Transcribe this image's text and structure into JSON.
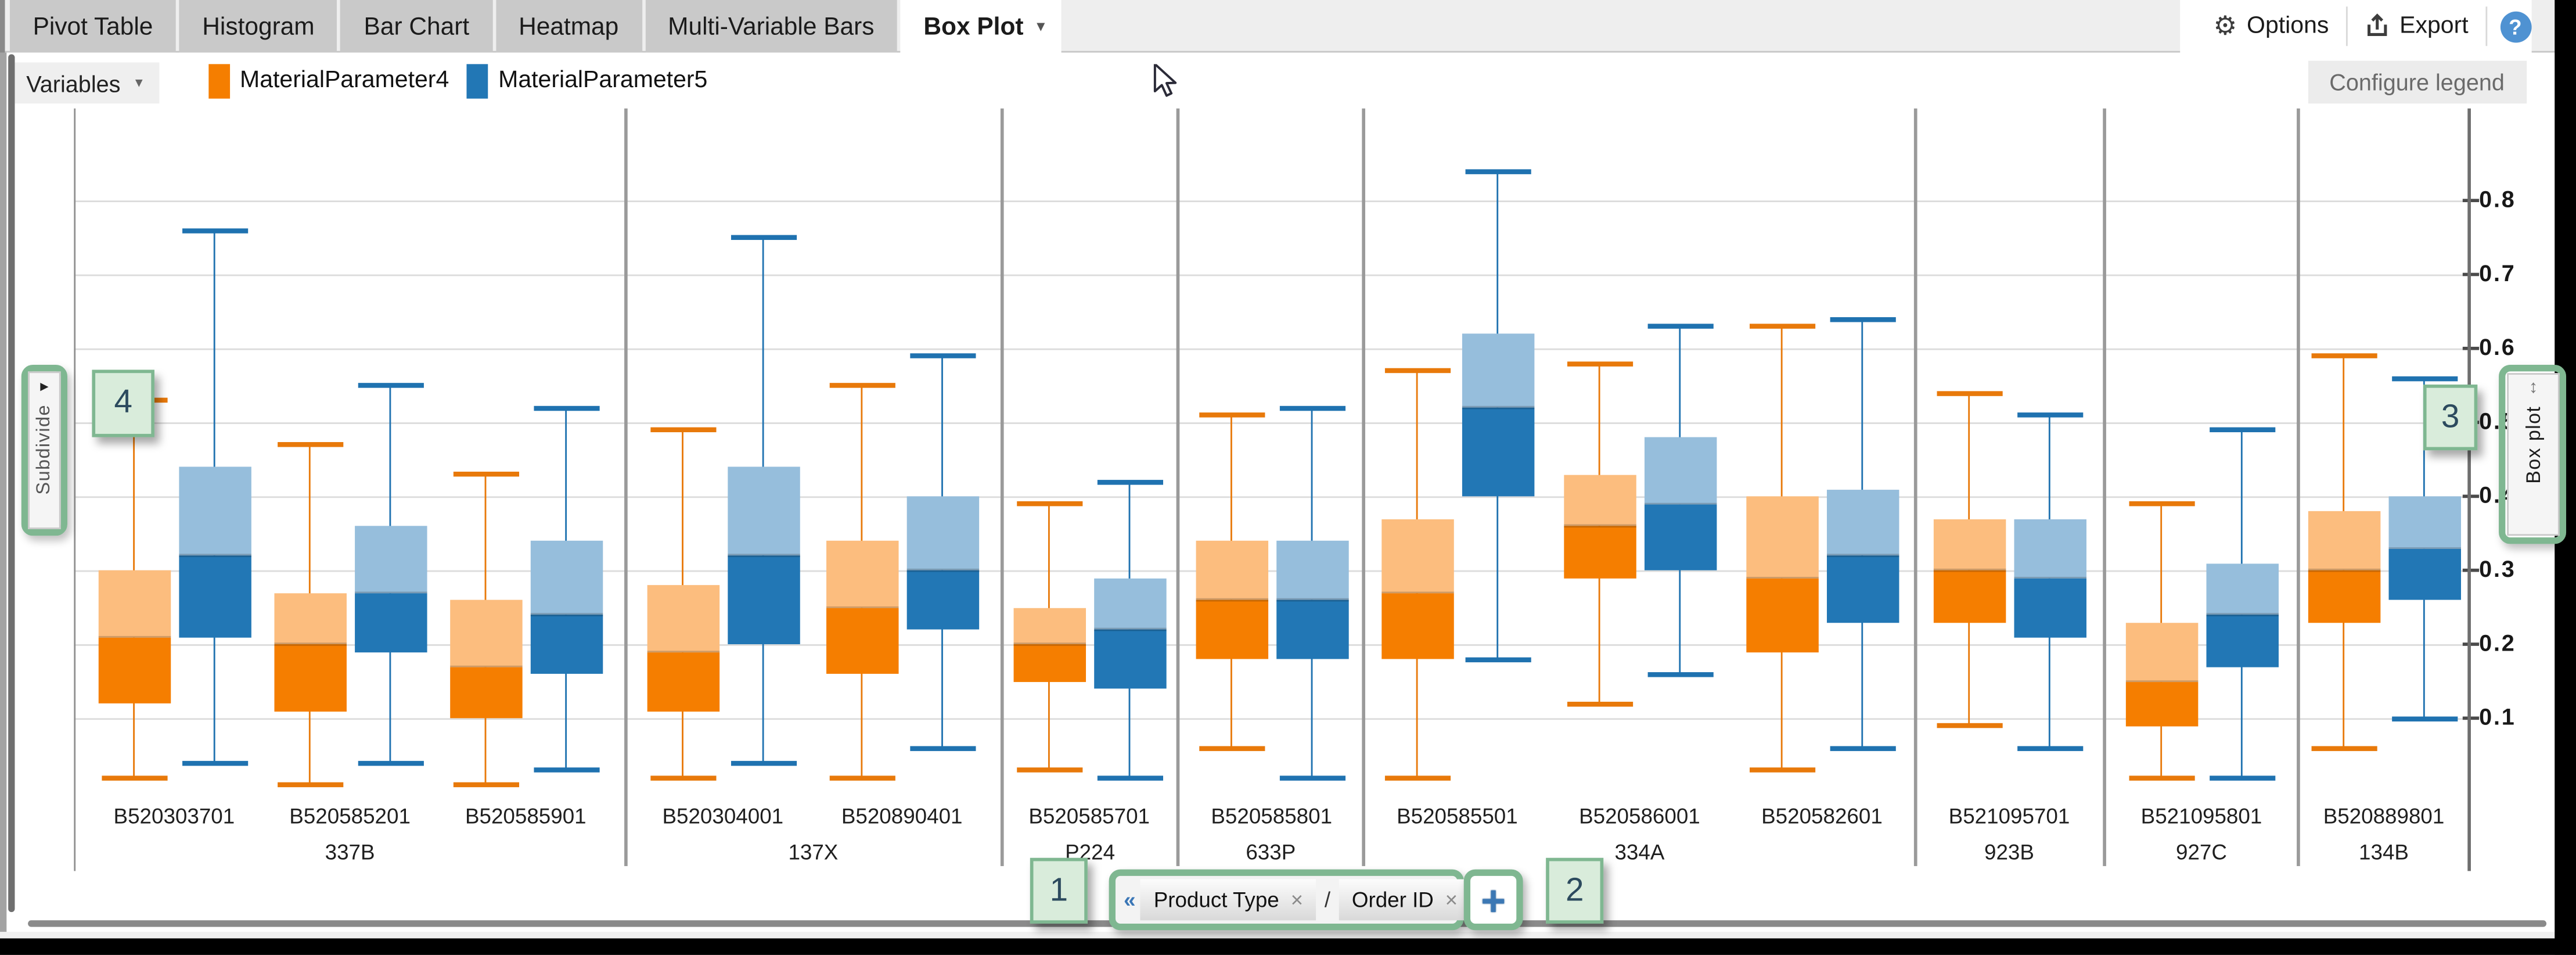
{
  "tabs": [
    {
      "label": "Pivot Table",
      "active": false
    },
    {
      "label": "Histogram",
      "active": false
    },
    {
      "label": "Bar Chart",
      "active": false
    },
    {
      "label": "Heatmap",
      "active": false
    },
    {
      "label": "Multi-Variable Bars",
      "active": false
    },
    {
      "label": "Box Plot",
      "active": true
    }
  ],
  "active_tab_caret": "▾",
  "toolbar": {
    "options_label": "Options",
    "export_label": "Export",
    "help_label": "?",
    "gear_glyph": "⚙"
  },
  "legend_bar": {
    "variables_label": "Variables",
    "caret": "▾",
    "configure_legend_label": "Configure legend"
  },
  "side_tabs": {
    "left_label": "Subdivide",
    "left_arrow": "▸",
    "right_label": "Box plot",
    "right_arrows": "↕"
  },
  "annotations": {
    "badge_1": "1",
    "badge_2": "2",
    "badge_3": "3",
    "badge_4": "4",
    "highlight_fill": "#d9ecdb",
    "highlight_border": "#7fb791"
  },
  "breadcrumb": {
    "collapse_glyph": "«",
    "chips": [
      {
        "label": "Product Type",
        "close": "×"
      },
      {
        "label": "Order ID",
        "close": "×"
      }
    ],
    "separator": "/",
    "add_label": "+"
  },
  "chart_data": {
    "type": "boxplot",
    "series_names": [
      "MaterialParameter4",
      "MaterialParameter5"
    ],
    "colors": {
      "MaterialParameter4": {
        "box_dark": "#f57e00",
        "box_light": "#fcbd7e",
        "whisker": "#e8790a"
      },
      "MaterialParameter5": {
        "box_dark": "#2277b5",
        "box_light": "#96bedc",
        "whisker": "#1f72b0"
      }
    },
    "y_axis": {
      "ticks": [
        0.1,
        0.2,
        0.3,
        0.4,
        0.5,
        0.6,
        0.7,
        0.8
      ],
      "range_shown": [
        0.0,
        0.88
      ],
      "side": "right",
      "grid": true
    },
    "x_axis": {
      "level_1": "Order ID",
      "level_2": "Product Type"
    },
    "values_order": [
      "whisker_low",
      "q1",
      "median",
      "q3",
      "whisker_high"
    ],
    "groups": [
      {
        "product_type": "337B",
        "orders": [
          {
            "id": "B520303701",
            "MaterialParameter4": [
              0.02,
              0.12,
              0.21,
              0.3,
              0.53
            ],
            "MaterialParameter5": [
              0.04,
              0.21,
              0.32,
              0.44,
              0.76
            ]
          },
          {
            "id": "B520585201",
            "MaterialParameter4": [
              0.01,
              0.11,
              0.2,
              0.27,
              0.47
            ],
            "MaterialParameter5": [
              0.04,
              0.19,
              0.27,
              0.36,
              0.55
            ]
          },
          {
            "id": "B520585901",
            "MaterialParameter4": [
              0.01,
              0.1,
              0.17,
              0.26,
              0.43
            ],
            "MaterialParameter5": [
              0.03,
              0.16,
              0.24,
              0.34,
              0.52
            ]
          }
        ]
      },
      {
        "product_type": "137X",
        "orders": [
          {
            "id": "B520304001",
            "MaterialParameter4": [
              0.02,
              0.11,
              0.19,
              0.28,
              0.49
            ],
            "MaterialParameter5": [
              0.04,
              0.2,
              0.32,
              0.44,
              0.75
            ]
          },
          {
            "id": "B520890401",
            "MaterialParameter4": [
              0.02,
              0.16,
              0.25,
              0.34,
              0.55
            ],
            "MaterialParameter5": [
              0.06,
              0.22,
              0.3,
              0.4,
              0.59
            ]
          }
        ]
      },
      {
        "product_type": "P224",
        "orders": [
          {
            "id": "B520585701",
            "MaterialParameter4": [
              0.03,
              0.15,
              0.2,
              0.25,
              0.39
            ],
            "MaterialParameter5": [
              0.02,
              0.14,
              0.22,
              0.29,
              0.42
            ]
          }
        ]
      },
      {
        "product_type": "633P",
        "orders": [
          {
            "id": "B520585801",
            "MaterialParameter4": [
              0.06,
              0.18,
              0.26,
              0.34,
              0.51
            ],
            "MaterialParameter5": [
              0.02,
              0.18,
              0.26,
              0.34,
              0.52
            ]
          }
        ]
      },
      {
        "product_type": "334A",
        "orders": [
          {
            "id": "B520585501",
            "MaterialParameter4": [
              0.02,
              0.18,
              0.27,
              0.37,
              0.57
            ],
            "MaterialParameter5": [
              0.18,
              0.4,
              0.52,
              0.62,
              0.84
            ]
          },
          {
            "id": "B520586001",
            "MaterialParameter4": [
              0.12,
              0.29,
              0.36,
              0.43,
              0.58
            ],
            "MaterialParameter5": [
              0.16,
              0.3,
              0.39,
              0.48,
              0.63
            ]
          },
          {
            "id": "B520582601",
            "MaterialParameter4": [
              0.03,
              0.19,
              0.29,
              0.4,
              0.63
            ],
            "MaterialParameter5": [
              0.06,
              0.23,
              0.32,
              0.41,
              0.64
            ]
          }
        ]
      },
      {
        "product_type": "923B",
        "orders": [
          {
            "id": "B521095701",
            "MaterialParameter4": [
              0.09,
              0.23,
              0.3,
              0.37,
              0.54
            ],
            "MaterialParameter5": [
              0.06,
              0.21,
              0.29,
              0.37,
              0.51
            ]
          }
        ]
      },
      {
        "product_type": "927C",
        "orders": [
          {
            "id": "B521095801",
            "MaterialParameter4": [
              0.02,
              0.09,
              0.15,
              0.23,
              0.39
            ],
            "MaterialParameter5": [
              0.02,
              0.17,
              0.24,
              0.31,
              0.49
            ]
          }
        ]
      },
      {
        "product_type": "134B",
        "orders": [
          {
            "id": "B520889801",
            "MaterialParameter4": [
              0.06,
              0.23,
              0.3,
              0.38,
              0.59
            ],
            "MaterialParameter5": [
              0.1,
              0.26,
              0.33,
              0.4,
              0.56
            ]
          }
        ]
      }
    ]
  }
}
